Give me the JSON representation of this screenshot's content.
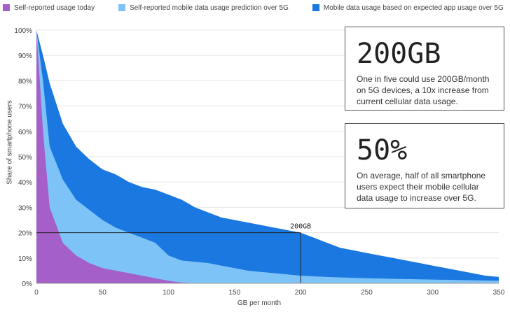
{
  "legend": [
    {
      "label": "Self-reported usage today",
      "color": "#a45fc9"
    },
    {
      "label": "Self-reported mobile data usage prediction over 5G",
      "color": "#7ec3f7"
    },
    {
      "label": "Mobile data usage based on expected app usage over 5G",
      "color": "#1a78e0"
    }
  ],
  "axes": {
    "ylabel": "Share of smartphone users",
    "xlabel": "GB per month"
  },
  "annotation": {
    "label": "200GB",
    "x": 200,
    "y": 20
  },
  "callouts": [
    {
      "headline": "200GB",
      "body": "One in five could use 200GB/month on 5G devices, a 10x increase from current cellular data usage."
    },
    {
      "headline": "50%",
      "body": "On average, half of all smartphone users expect their mobile cellular data usage to increase over 5G."
    }
  ],
  "chart_data": {
    "type": "area",
    "xlabel": "GB per month",
    "ylabel": "Share of smartphone users",
    "xlim": [
      0,
      350
    ],
    "ylim": [
      0,
      100
    ],
    "x_ticks": [
      0,
      50,
      100,
      150,
      200,
      250,
      300,
      350
    ],
    "y_ticks": [
      "0%",
      "10%",
      "20%",
      "30%",
      "40%",
      "50%",
      "60%",
      "70%",
      "80%",
      "90%",
      "100%"
    ],
    "grid": true,
    "legend_position": "top",
    "series": [
      {
        "name": "Mobile data usage based on expected app usage over 5G",
        "color": "#1a78e0",
        "points": [
          [
            0,
            100
          ],
          [
            5,
            90
          ],
          [
            10,
            79
          ],
          [
            20,
            63
          ],
          [
            30,
            54
          ],
          [
            40,
            49
          ],
          [
            50,
            45
          ],
          [
            60,
            43
          ],
          [
            70,
            40
          ],
          [
            80,
            38
          ],
          [
            90,
            37
          ],
          [
            100,
            35
          ],
          [
            110,
            33
          ],
          [
            120,
            30
          ],
          [
            130,
            28
          ],
          [
            140,
            26
          ],
          [
            150,
            25
          ],
          [
            160,
            24
          ],
          [
            170,
            23
          ],
          [
            180,
            22
          ],
          [
            190,
            21
          ],
          [
            200,
            20
          ],
          [
            210,
            18
          ],
          [
            220,
            16
          ],
          [
            230,
            14
          ],
          [
            240,
            13
          ],
          [
            250,
            12
          ],
          [
            260,
            11
          ],
          [
            270,
            10
          ],
          [
            280,
            9
          ],
          [
            290,
            8
          ],
          [
            300,
            7
          ],
          [
            310,
            6
          ],
          [
            320,
            5
          ],
          [
            330,
            4
          ],
          [
            340,
            3
          ],
          [
            350,
            2.5
          ]
        ]
      },
      {
        "name": "Self-reported mobile data usage prediction over 5G",
        "color": "#7ec3f7",
        "points": [
          [
            0,
            100
          ],
          [
            5,
            80
          ],
          [
            10,
            54
          ],
          [
            20,
            41
          ],
          [
            30,
            33
          ],
          [
            40,
            29
          ],
          [
            50,
            25
          ],
          [
            60,
            22
          ],
          [
            70,
            20
          ],
          [
            80,
            18
          ],
          [
            90,
            16
          ],
          [
            100,
            11
          ],
          [
            110,
            9
          ],
          [
            120,
            8.5
          ],
          [
            130,
            8
          ],
          [
            140,
            7
          ],
          [
            150,
            6
          ],
          [
            160,
            5
          ],
          [
            170,
            4.5
          ],
          [
            180,
            4
          ],
          [
            190,
            3.5
          ],
          [
            200,
            3
          ],
          [
            220,
            2.5
          ],
          [
            250,
            2
          ],
          [
            300,
            1.5
          ],
          [
            350,
            1
          ]
        ]
      },
      {
        "name": "Self-reported usage today",
        "color": "#a45fc9",
        "points": [
          [
            0,
            100
          ],
          [
            5,
            60
          ],
          [
            10,
            30
          ],
          [
            20,
            16
          ],
          [
            30,
            11
          ],
          [
            40,
            8
          ],
          [
            50,
            6
          ],
          [
            60,
            5
          ],
          [
            70,
            4
          ],
          [
            80,
            3
          ],
          [
            90,
            2
          ],
          [
            100,
            1
          ],
          [
            110,
            0.3
          ],
          [
            120,
            0
          ]
        ]
      }
    ]
  }
}
